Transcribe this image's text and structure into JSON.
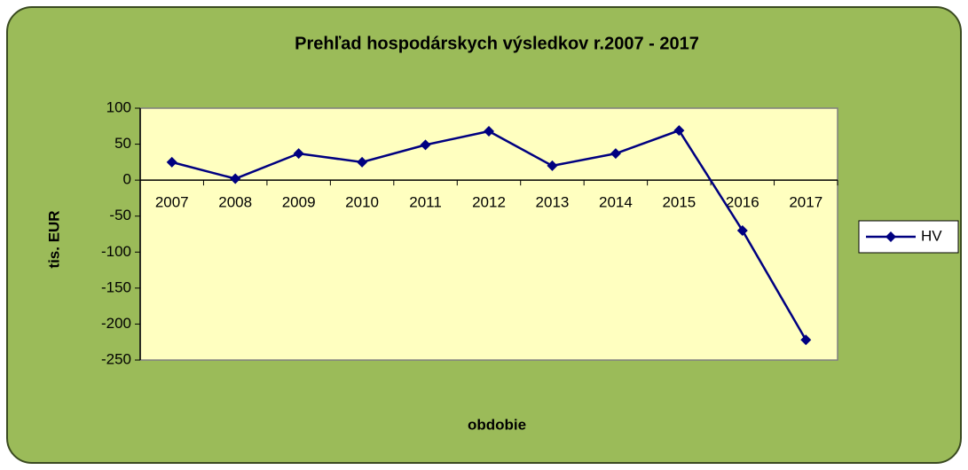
{
  "chart_data": {
    "type": "line",
    "title": "Prehľad hospodárskych výsledkov r.2007 - 2017",
    "x_label": "obdobie",
    "y_label": "tis. EUR",
    "categories": [
      "2007",
      "2008",
      "2009",
      "2010",
      "2011",
      "2012",
      "2013",
      "2014",
      "2015",
      "2016",
      "2017"
    ],
    "series": [
      {
        "name": "HV",
        "color": "#000080",
        "values": [
          25,
          2,
          37,
          25,
          49,
          68,
          20,
          37,
          69,
          -70,
          -222
        ]
      }
    ],
    "ylim": [
      -250,
      100
    ],
    "yticks": [
      -250,
      -200,
      -150,
      -100,
      -50,
      0,
      50,
      100
    ],
    "grid": false,
    "legend": "right"
  }
}
